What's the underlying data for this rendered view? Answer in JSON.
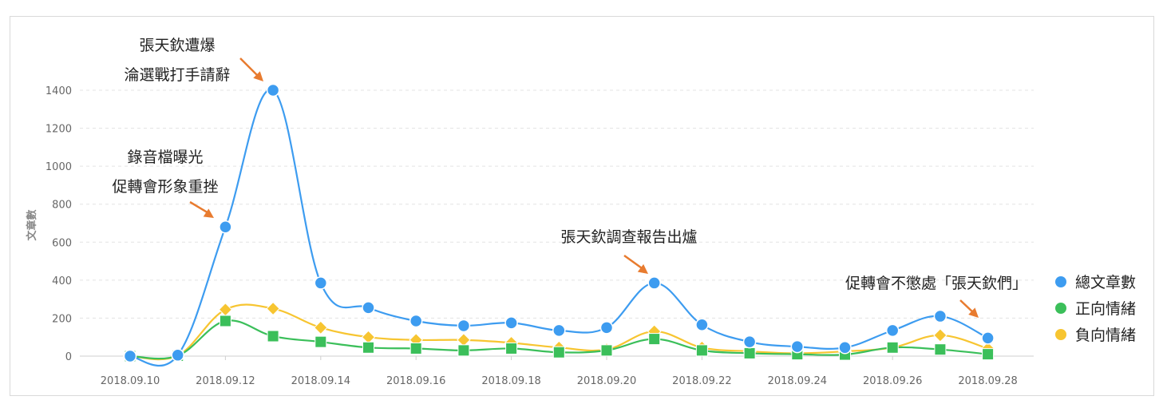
{
  "chart_data": {
    "type": "line",
    "ylabel": "文章數",
    "xlabel": "",
    "ylim": [
      0,
      1400
    ],
    "yticks": [
      0,
      200,
      400,
      600,
      800,
      1000,
      1200,
      1400
    ],
    "x": [
      "2018.09.10",
      "2018.09.11",
      "2018.09.12",
      "2018.09.13",
      "2018.09.14",
      "2018.09.15",
      "2018.09.16",
      "2018.09.17",
      "2018.09.18",
      "2018.09.19",
      "2018.09.20",
      "2018.09.21",
      "2018.09.22",
      "2018.09.23",
      "2018.09.24",
      "2018.09.25",
      "2018.09.26",
      "2018.09.27",
      "2018.09.28"
    ],
    "xtick_labels": [
      "2018.09.10",
      "2018.09.12",
      "2018.09.14",
      "2018.09.16",
      "2018.09.18",
      "2018.09.20",
      "2018.09.22",
      "2018.09.24",
      "2018.09.26",
      "2018.09.28"
    ],
    "grid": true,
    "legend_position": "right",
    "series": [
      {
        "name": "總文章數",
        "color": "#3d9cf0",
        "marker": "circle",
        "values": [
          0,
          5,
          680,
          1400,
          385,
          255,
          185,
          160,
          175,
          135,
          150,
          385,
          165,
          75,
          50,
          45,
          135,
          210,
          95
        ]
      },
      {
        "name": "正向情緒",
        "color": "#3bbf5a",
        "marker": "square",
        "values": [
          0,
          2,
          185,
          105,
          75,
          45,
          40,
          30,
          40,
          20,
          30,
          90,
          30,
          15,
          10,
          8,
          45,
          35,
          10
        ]
      },
      {
        "name": "負向情緒",
        "color": "#f7c531",
        "marker": "diamond",
        "values": [
          0,
          3,
          245,
          250,
          150,
          100,
          85,
          85,
          70,
          45,
          35,
          130,
          45,
          25,
          15,
          25,
          45,
          110,
          40
        ]
      }
    ],
    "annotations": [
      {
        "lines": [
          "張天欽遭爆",
          "淪選戰打手請辭"
        ],
        "index": 3
      },
      {
        "lines": [
          "錄音檔曝光",
          "促轉會形象重挫"
        ],
        "index": 2
      },
      {
        "lines": [
          "張天欽調查報告出爐"
        ],
        "index": 11
      },
      {
        "lines": [
          "促轉會不懲處「張天欽們」"
        ],
        "index": 18
      }
    ]
  }
}
